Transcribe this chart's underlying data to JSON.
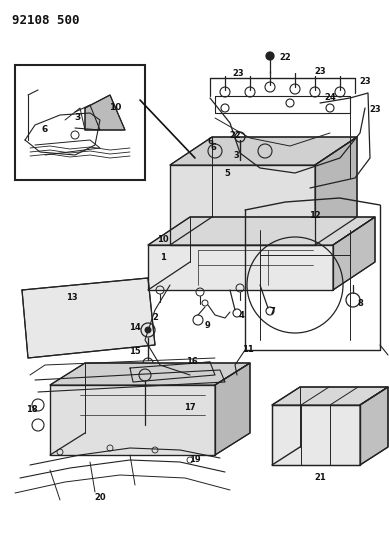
{
  "title": "92108 500",
  "bg_color": "#ffffff",
  "fig_width": 3.89,
  "fig_height": 5.33,
  "dpi": 100,
  "line_color": "#222222",
  "label_color": "#111111",
  "label_fs": 6.0
}
